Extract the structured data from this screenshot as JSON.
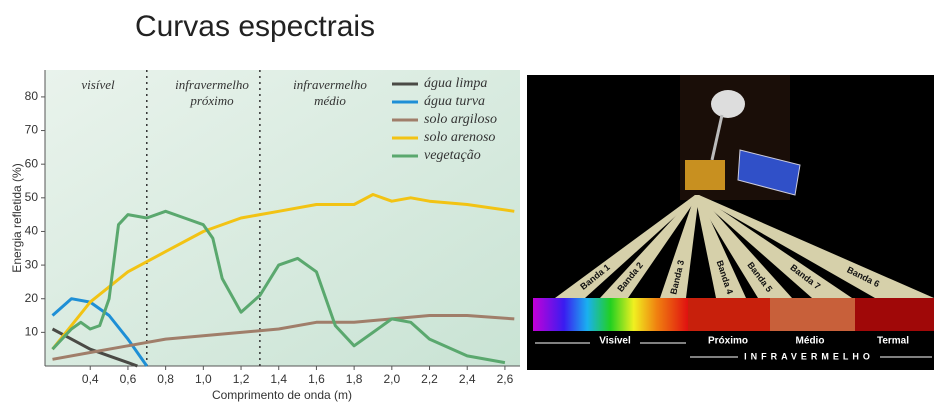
{
  "chart_data": {
    "type": "line",
    "title": "Curvas espectrais",
    "ylabel": "Energia refletida (%)",
    "xlabel": "Comprimento de onda (m)",
    "xlim": [
      0.16,
      2.68
    ],
    "ylim": [
      0,
      88
    ],
    "xticks": [
      {
        "value": 0.4,
        "label": "0,4"
      },
      {
        "value": 0.6,
        "label": "0,6"
      },
      {
        "value": 0.8,
        "label": "0,8"
      },
      {
        "value": 1.0,
        "label": "1,0"
      },
      {
        "value": 1.2,
        "label": "1,2"
      },
      {
        "value": 1.4,
        "label": "1,4"
      },
      {
        "value": 1.6,
        "label": "1,6"
      },
      {
        "value": 1.8,
        "label": "1,8"
      },
      {
        "value": 2.0,
        "label": "2,0"
      },
      {
        "value": 2.2,
        "label": "2,2"
      },
      {
        "value": 2.4,
        "label": "2,4"
      },
      {
        "value": 2.6,
        "label": "2,6"
      }
    ],
    "yticks": [
      10,
      20,
      30,
      40,
      50,
      60,
      70,
      80
    ],
    "regions": [
      {
        "label": "visível"
      },
      {
        "label": "infravermelho próximo"
      },
      {
        "label": "infravermelho médio"
      }
    ],
    "dividers": [
      0.7,
      1.3
    ],
    "legend": "upper right",
    "series": [
      {
        "name": "água limpa",
        "color": "#4a4a45",
        "x": [
          0.2,
          0.3,
          0.4,
          0.5,
          0.6,
          0.65
        ],
        "values": [
          11,
          8,
          5,
          3,
          1,
          0
        ]
      },
      {
        "name": "água turva",
        "color": "#1e8fd6",
        "x": [
          0.2,
          0.3,
          0.4,
          0.5,
          0.6,
          0.7
        ],
        "values": [
          15,
          20,
          19,
          15,
          8,
          0
        ]
      },
      {
        "name": "solo argiloso",
        "color": "#a07e6a",
        "x": [
          0.2,
          0.4,
          0.6,
          0.8,
          1.0,
          1.2,
          1.4,
          1.6,
          1.8,
          2.0,
          2.2,
          2.4,
          2.65
        ],
        "values": [
          2,
          4,
          6,
          8,
          9,
          10,
          11,
          13,
          13,
          14,
          15,
          15,
          14
        ]
      },
      {
        "name": "solo arenoso",
        "color": "#f2c314",
        "x": [
          0.2,
          0.3,
          0.4,
          0.6,
          0.8,
          1.0,
          1.2,
          1.4,
          1.6,
          1.8,
          1.9,
          2.0,
          2.1,
          2.2,
          2.4,
          2.65
        ],
        "values": [
          5,
          12,
          19,
          28,
          34,
          40,
          44,
          46,
          48,
          48,
          51,
          49,
          50,
          49,
          48,
          46
        ]
      },
      {
        "name": "vegetação",
        "color": "#5aa86e",
        "x": [
          0.2,
          0.3,
          0.35,
          0.4,
          0.45,
          0.5,
          0.55,
          0.6,
          0.7,
          0.8,
          0.9,
          1.0,
          1.05,
          1.1,
          1.2,
          1.3,
          1.4,
          1.5,
          1.6,
          1.7,
          1.8,
          1.9,
          2.0,
          2.1,
          2.2,
          2.4,
          2.6
        ],
        "values": [
          5,
          11,
          13,
          11,
          12,
          20,
          42,
          45,
          44,
          46,
          44,
          42,
          38,
          26,
          16,
          21,
          30,
          32,
          28,
          12,
          6,
          10,
          14,
          13,
          8,
          3,
          1
        ]
      }
    ]
  },
  "spectrum_figure": {
    "bands": [
      "Banda 1",
      "Banda 2",
      "Banda 3",
      "Banda 4",
      "Banda 5",
      "Banda 7",
      "Banda 6"
    ],
    "regions": [
      "Visível",
      "Próximo",
      "Médio",
      "Termal"
    ],
    "group": "INFRAVERMELHO"
  }
}
